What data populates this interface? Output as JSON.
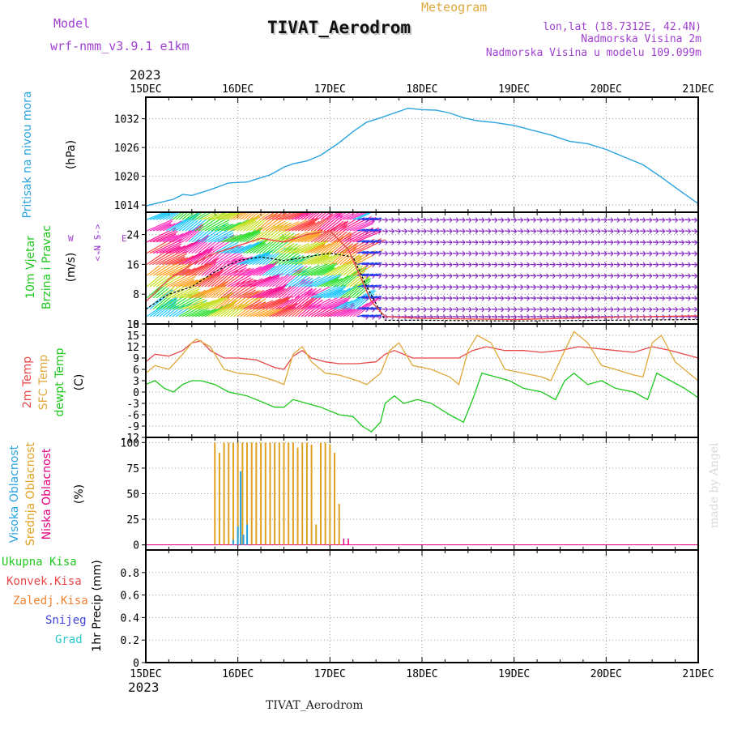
{
  "header": {
    "model_label": "Model",
    "model_name": "wrf-nmm_v3.9.1  e1km",
    "product": "Meteogram",
    "station": "TIVAT_Aerodrom",
    "lonlat": "lon,lat (18.7312E, 42.4N)",
    "elevation": "Nadmorska Visina 2m",
    "model_elevation": "Nadmorska Visina u modelu 109.099m",
    "footer_station": "TIVAT_Aerodrom",
    "watermark": "made by Angel",
    "year_top": "2023",
    "year_bottom": "2023"
  },
  "colors": {
    "pressure": "#29a3e0",
    "temp2m": "#e84848",
    "sfc_temp": "#e0a83a",
    "dewpt": "#1ec81e",
    "cloud_high": "#29a3e0",
    "cloud_mid": "#e0a020",
    "cloud_low": "#e6007e",
    "model_purple": "#a040d0",
    "station_pressure_label": "#29a3e0",
    "wind_label": "#1ec81e",
    "prec_total": "#1ec81e",
    "prec_conv": "#e84848",
    "prec_frz": "#f08030",
    "prec_snow": "#4040e0",
    "prec_hail": "#28c8c8"
  },
  "chart_data": [
    {
      "type": "line",
      "panel": "pressure",
      "ylabel_lines": [
        "Pritisak na nivou mora",
        "(hPa)"
      ],
      "x_ticks": [
        "15DEC",
        "16DEC",
        "17DEC",
        "18DEC",
        "19DEC",
        "20DEC",
        "21DEC"
      ],
      "x_range": [
        0,
        6
      ],
      "y_ticks": [
        1014,
        1020,
        1026,
        1032
      ],
      "y_range": [
        1012.5,
        1036.5
      ],
      "grid": true,
      "series": [
        {
          "color_key": "pressure",
          "points": [
            [
              0,
              1013.8
            ],
            [
              0.1,
              1014.3
            ],
            [
              0.3,
              1015.2
            ],
            [
              0.4,
              1016.2
            ],
            [
              0.5,
              1016.0
            ],
            [
              0.7,
              1017.2
            ],
            [
              0.9,
              1018.6
            ],
            [
              1.1,
              1018.8
            ],
            [
              1.2,
              1019.4
            ],
            [
              1.35,
              1020.3
            ],
            [
              1.5,
              1021.9
            ],
            [
              1.6,
              1022.6
            ],
            [
              1.75,
              1023.2
            ],
            [
              1.9,
              1024.4
            ],
            [
              2.1,
              1027.0
            ],
            [
              2.25,
              1029.3
            ],
            [
              2.4,
              1031.3
            ],
            [
              2.55,
              1032.2
            ],
            [
              2.7,
              1033.2
            ],
            [
              2.85,
              1034.2
            ],
            [
              3.0,
              1033.9
            ],
            [
              3.15,
              1033.8
            ],
            [
              3.3,
              1033.2
            ],
            [
              3.45,
              1032.2
            ],
            [
              3.6,
              1031.6
            ],
            [
              3.8,
              1031.2
            ],
            [
              4.0,
              1030.6
            ],
            [
              4.2,
              1029.6
            ],
            [
              4.4,
              1028.6
            ],
            [
              4.6,
              1027.3
            ],
            [
              4.8,
              1026.8
            ],
            [
              5.0,
              1025.6
            ],
            [
              5.2,
              1024.0
            ],
            [
              5.4,
              1022.4
            ],
            [
              5.6,
              1019.8
            ],
            [
              5.8,
              1017.0
            ],
            [
              6.0,
              1014.3
            ]
          ]
        }
      ]
    },
    {
      "type": "line",
      "panel": "wind",
      "ylabel_lines": [
        "10m Vjetar",
        "Brzina i Pravac",
        "(m/s)"
      ],
      "compass_labels": [
        "N",
        "-->",
        "--",
        "<--",
        "S",
        "W",
        "E"
      ],
      "x_ticks": [
        "15DEC",
        "16DEC",
        "17DEC",
        "18DEC",
        "19DEC",
        "20DEC",
        "21DEC"
      ],
      "x_range": [
        0,
        6
      ],
      "y_ticks": [
        0,
        8,
        16,
        24
      ],
      "y_range": [
        0,
        30
      ],
      "grid": true,
      "speed_series": [
        {
          "name": "speed",
          "color": "#000000",
          "dashed": true,
          "points": [
            [
              0,
              4
            ],
            [
              0.25,
              8
            ],
            [
              0.5,
              10
            ],
            [
              0.75,
              14
            ],
            [
              1.0,
              17
            ],
            [
              1.25,
              18
            ],
            [
              1.5,
              17
            ],
            [
              1.75,
              18
            ],
            [
              2.0,
              19
            ],
            [
              2.25,
              18
            ],
            [
              2.4,
              10
            ],
            [
              2.6,
              1
            ],
            [
              3.0,
              1
            ],
            [
              4.0,
              0.8
            ],
            [
              5.0,
              1
            ],
            [
              6.0,
              1.2
            ]
          ]
        },
        {
          "name": "gust",
          "color": "#e84848",
          "dashed": false,
          "points": [
            [
              0,
              6
            ],
            [
              0.25,
              12
            ],
            [
              0.5,
              16
            ],
            [
              0.75,
              19
            ],
            [
              1.0,
              21
            ],
            [
              1.25,
              23
            ],
            [
              1.5,
              22
            ],
            [
              1.75,
              24
            ],
            [
              2.0,
              25
            ],
            [
              2.2,
              20
            ],
            [
              2.45,
              6
            ],
            [
              2.6,
              2
            ],
            [
              3.0,
              1.5
            ],
            [
              4.0,
              1.2
            ],
            [
              5.0,
              1.8
            ],
            [
              6.0,
              2.2
            ]
          ]
        }
      ],
      "vector_rows": [
        2,
        4,
        7,
        10,
        13,
        16,
        19,
        22,
        25,
        28
      ],
      "calm_after_day": 2.3,
      "strong_colors": [
        "#1ec8ff",
        "#30e030",
        "#c8e020",
        "#ffa020",
        "#ff4040",
        "#ff1090",
        "#ff30c0"
      ],
      "calm_color": "#8020c0"
    },
    {
      "type": "line",
      "panel": "temperature",
      "ylabel_lines": [
        "2m Temp",
        "SFC Temp",
        "dewpt Temp",
        "(C)"
      ],
      "x_ticks": [
        "15DEC",
        "16DEC",
        "17DEC",
        "18DEC",
        "19DEC",
        "20DEC",
        "21DEC"
      ],
      "x_range": [
        0,
        6
      ],
      "y_ticks": [
        -12,
        -9,
        -6,
        -3,
        0,
        3,
        6,
        9,
        12,
        15,
        18
      ],
      "y_range": [
        -12,
        18
      ],
      "grid": true,
      "series": [
        {
          "name": "2m Temp",
          "color_key": "temp2m",
          "points": [
            [
              0,
              8
            ],
            [
              0.1,
              10
            ],
            [
              0.25,
              9.5
            ],
            [
              0.4,
              11
            ],
            [
              0.5,
              13
            ],
            [
              0.6,
              13.5
            ],
            [
              0.7,
              11
            ],
            [
              0.85,
              9
            ],
            [
              1.0,
              9
            ],
            [
              1.2,
              8.5
            ],
            [
              1.4,
              6.5
            ],
            [
              1.5,
              6
            ],
            [
              1.6,
              9.5
            ],
            [
              1.7,
              11
            ],
            [
              1.8,
              9
            ],
            [
              1.95,
              8
            ],
            [
              2.1,
              7.5
            ],
            [
              2.3,
              7.5
            ],
            [
              2.5,
              8
            ],
            [
              2.6,
              10
            ],
            [
              2.7,
              11
            ],
            [
              2.9,
              9
            ],
            [
              3.2,
              9
            ],
            [
              3.4,
              9
            ],
            [
              3.55,
              11
            ],
            [
              3.7,
              12
            ],
            [
              3.9,
              11
            ],
            [
              4.1,
              11
            ],
            [
              4.3,
              10.5
            ],
            [
              4.5,
              11
            ],
            [
              4.7,
              12
            ],
            [
              4.9,
              11.5
            ],
            [
              5.1,
              11
            ],
            [
              5.3,
              10.5
            ],
            [
              5.5,
              12
            ],
            [
              5.7,
              11
            ],
            [
              6.0,
              9
            ]
          ]
        },
        {
          "name": "SFC Temp",
          "color_key": "sfc_temp",
          "points": [
            [
              0,
              5
            ],
            [
              0.1,
              7
            ],
            [
              0.25,
              6
            ],
            [
              0.4,
              10
            ],
            [
              0.5,
              13
            ],
            [
              0.55,
              14
            ],
            [
              0.7,
              12
            ],
            [
              0.85,
              6
            ],
            [
              1.0,
              5
            ],
            [
              1.2,
              4.5
            ],
            [
              1.4,
              3
            ],
            [
              1.5,
              2
            ],
            [
              1.6,
              10
            ],
            [
              1.7,
              12
            ],
            [
              1.8,
              8
            ],
            [
              1.95,
              5
            ],
            [
              2.1,
              4.5
            ],
            [
              2.3,
              3
            ],
            [
              2.4,
              2
            ],
            [
              2.55,
              5
            ],
            [
              2.65,
              11
            ],
            [
              2.75,
              13
            ],
            [
              2.9,
              7
            ],
            [
              3.1,
              6
            ],
            [
              3.3,
              4
            ],
            [
              3.4,
              2
            ],
            [
              3.5,
              11
            ],
            [
              3.6,
              15
            ],
            [
              3.75,
              13
            ],
            [
              3.9,
              6
            ],
            [
              4.1,
              5
            ],
            [
              4.3,
              4
            ],
            [
              4.4,
              3
            ],
            [
              4.55,
              11
            ],
            [
              4.65,
              16
            ],
            [
              4.8,
              13
            ],
            [
              4.95,
              7
            ],
            [
              5.1,
              6
            ],
            [
              5.3,
              4.5
            ],
            [
              5.4,
              4
            ],
            [
              5.5,
              13
            ],
            [
              5.6,
              15
            ],
            [
              5.75,
              8
            ],
            [
              5.9,
              5
            ],
            [
              6.0,
              3
            ]
          ]
        },
        {
          "name": "dewpt Temp",
          "color_key": "dewpt",
          "points": [
            [
              0,
              2
            ],
            [
              0.1,
              3
            ],
            [
              0.2,
              1
            ],
            [
              0.3,
              0
            ],
            [
              0.4,
              2
            ],
            [
              0.5,
              3
            ],
            [
              0.6,
              3
            ],
            [
              0.75,
              2
            ],
            [
              0.9,
              0
            ],
            [
              1.1,
              -1
            ],
            [
              1.3,
              -3
            ],
            [
              1.4,
              -4
            ],
            [
              1.5,
              -4
            ],
            [
              1.6,
              -2
            ],
            [
              1.75,
              -3
            ],
            [
              1.9,
              -4
            ],
            [
              2.1,
              -6
            ],
            [
              2.25,
              -6.5
            ],
            [
              2.35,
              -9
            ],
            [
              2.45,
              -10.5
            ],
            [
              2.55,
              -8
            ],
            [
              2.6,
              -3
            ],
            [
              2.7,
              -1
            ],
            [
              2.8,
              -3
            ],
            [
              2.95,
              -2
            ],
            [
              3.1,
              -3
            ],
            [
              3.3,
              -6
            ],
            [
              3.45,
              -8
            ],
            [
              3.55,
              -2
            ],
            [
              3.65,
              5
            ],
            [
              3.8,
              4
            ],
            [
              3.95,
              3
            ],
            [
              4.1,
              1
            ],
            [
              4.3,
              0
            ],
            [
              4.45,
              -2
            ],
            [
              4.55,
              3
            ],
            [
              4.65,
              5
            ],
            [
              4.8,
              2
            ],
            [
              4.95,
              3
            ],
            [
              5.1,
              1
            ],
            [
              5.3,
              0
            ],
            [
              5.45,
              -2
            ],
            [
              5.55,
              5
            ],
            [
              5.7,
              3
            ],
            [
              5.85,
              1
            ],
            [
              6.0,
              -1.5
            ]
          ]
        }
      ]
    },
    {
      "type": "bar",
      "panel": "cloud",
      "ylabel_lines": [
        "Visoka Oblacnost",
        "Srednja Oblacnost",
        "Niska Oblacnost",
        "(%)"
      ],
      "x_ticks": [
        "15DEC",
        "16DEC",
        "17DEC",
        "18DEC",
        "19DEC",
        "20DEC",
        "21DEC"
      ],
      "x_range": [
        0,
        6
      ],
      "y_ticks": [
        0,
        25,
        50,
        75,
        100
      ],
      "y_range": [
        -5,
        105
      ],
      "grid": true,
      "mid_bars": [
        [
          0.75,
          100
        ],
        [
          0.8,
          90
        ],
        [
          0.85,
          100
        ],
        [
          0.9,
          100
        ],
        [
          0.95,
          100
        ],
        [
          1.0,
          100
        ],
        [
          1.05,
          100
        ],
        [
          1.1,
          100
        ],
        [
          1.15,
          100
        ],
        [
          1.2,
          100
        ],
        [
          1.25,
          100
        ],
        [
          1.3,
          100
        ],
        [
          1.35,
          100
        ],
        [
          1.4,
          100
        ],
        [
          1.45,
          100
        ],
        [
          1.5,
          100
        ],
        [
          1.55,
          100
        ],
        [
          1.6,
          100
        ],
        [
          1.65,
          95
        ],
        [
          1.7,
          100
        ],
        [
          1.75,
          100
        ],
        [
          1.8,
          98
        ],
        [
          1.85,
          20
        ],
        [
          1.9,
          100
        ],
        [
          1.95,
          100
        ],
        [
          2.0,
          98
        ],
        [
          2.05,
          90
        ],
        [
          2.1,
          40
        ]
      ],
      "high_bars": [
        [
          0.95,
          5
        ],
        [
          1.0,
          18
        ],
        [
          1.03,
          72
        ],
        [
          1.06,
          10
        ],
        [
          1.1,
          20
        ]
      ],
      "low_bars": [
        [
          2.15,
          3
        ],
        [
          2.2,
          3
        ]
      ]
    },
    {
      "type": "bar",
      "panel": "precip",
      "ylabel_lines": [
        "1hr Precip (mm)"
      ],
      "legend": [
        "Ukupna Kisa",
        "Konvek.Kisa",
        "Zaledj.Kisa",
        "Snijeg",
        "Grad"
      ],
      "x_ticks": [
        "15DEC",
        "16DEC",
        "17DEC",
        "18DEC",
        "19DEC",
        "20DEC",
        "21DEC"
      ],
      "x_range": [
        0,
        6
      ],
      "y_ticks": [
        0,
        0.2,
        0.4,
        0.6,
        0.8
      ],
      "y_range": [
        0,
        1.0
      ],
      "grid": true,
      "values": []
    }
  ]
}
